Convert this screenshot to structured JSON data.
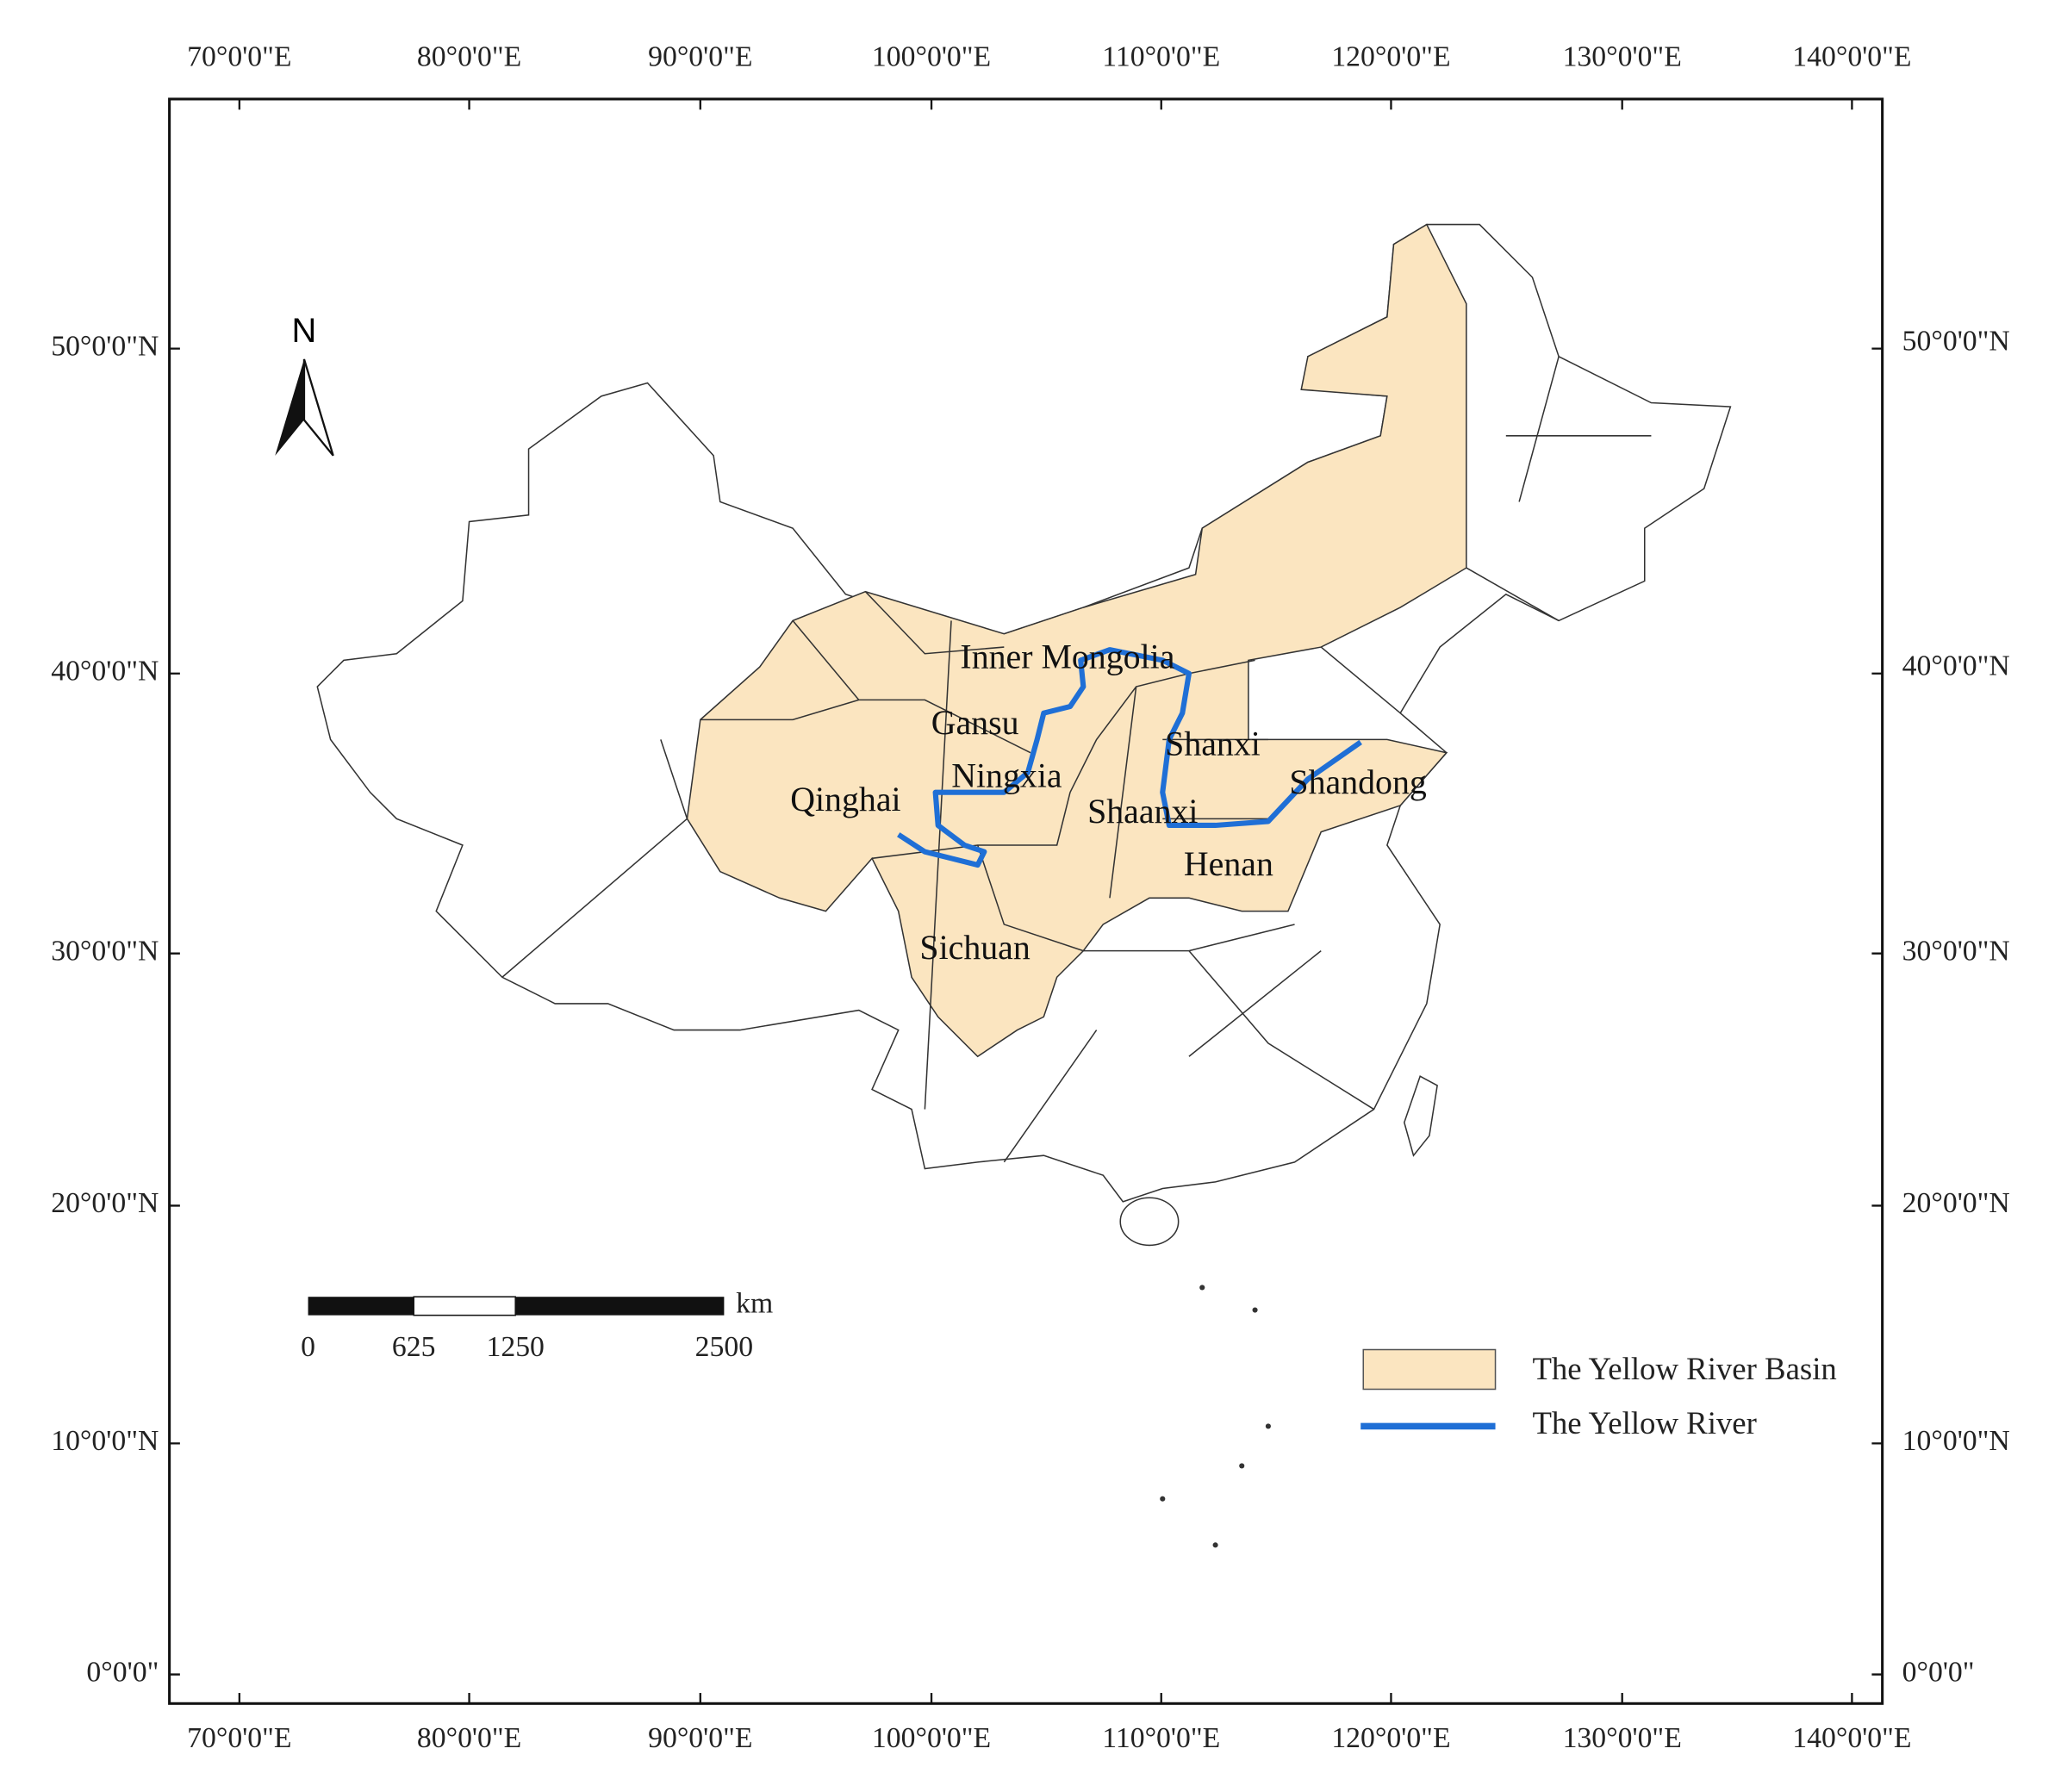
{
  "map": {
    "longitude_labels": [
      "70°0'0\"E",
      "80°0'0\"E",
      "90°0'0\"E",
      "100°0'0\"E",
      "110°0'0\"E",
      "120°0'0\"E",
      "130°0'0\"E",
      "140°0'0\"E"
    ],
    "latitude_labels": [
      "50°0'0\"N",
      "40°0'0\"N",
      "30°0'0\"N",
      "20°0'0\"N",
      "10°0'0\"N",
      "0°0'0\""
    ],
    "north_arrow": "N",
    "scale_bar": {
      "labels": [
        "0",
        "625",
        "1250",
        "2500"
      ],
      "unit": "km"
    },
    "provinces": [
      "Inner Mongolia",
      "Gansu",
      "Ningxia",
      "Qinghai",
      "Shanxi",
      "Shandong",
      "Shaanxi",
      "Henan",
      "Sichuan"
    ],
    "legend": [
      {
        "label": "The Yellow River Basin"
      },
      {
        "label": "The Yellow River"
      }
    ]
  }
}
